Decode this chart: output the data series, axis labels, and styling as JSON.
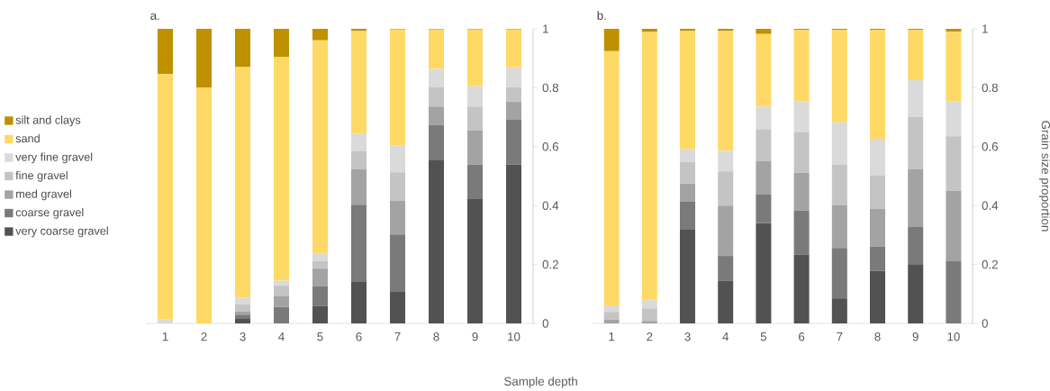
{
  "chart_data": [
    {
      "type": "bar",
      "stacked": true,
      "title": "a.",
      "xlabel": "Sample depth",
      "legend": "left",
      "categories": [
        "1",
        "2",
        "3",
        "4",
        "5",
        "6",
        "7",
        "8",
        "9",
        "10"
      ],
      "ylim": [
        0,
        1
      ],
      "yticks": [
        0,
        {
          "value": 0.2,
          "label": "0.2"
        },
        {
          "value": 0.4,
          "label": "0.4"
        },
        {
          "value": 0.6,
          "label": "0.6"
        },
        {
          "value": 0.8,
          "label": "0.8"
        },
        1
      ],
      "series": [
        {
          "name": "very coarse gravel",
          "color": "#525252",
          "values": [
            0,
            0,
            0.015,
            0,
            0.059,
            0.141,
            0.107,
            0.556,
            0.422,
            0.539
          ]
        },
        {
          "name": "coarse gravel",
          "color": "#7a7a7a",
          "values": [
            0,
            0,
            0.015,
            0.056,
            0.068,
            0.262,
            0.195,
            0.117,
            0.118,
            0.152
          ]
        },
        {
          "name": "med gravel",
          "color": "#a3a3a3",
          "values": [
            0,
            0,
            0.01,
            0.037,
            0.059,
            0.12,
            0.114,
            0.063,
            0.116,
            0.061
          ]
        },
        {
          "name": "fine gravel",
          "color": "#c4c4c4",
          "values": [
            0,
            0,
            0.024,
            0.035,
            0.026,
            0.063,
            0.097,
            0.066,
            0.08,
            0.05
          ]
        },
        {
          "name": "very fine gravel",
          "color": "#dadada",
          "values": [
            0.013,
            0,
            0.023,
            0.017,
            0.026,
            0.057,
            0.091,
            0.062,
            0.069,
            0.067
          ]
        },
        {
          "name": "sand",
          "color": "#ffd966",
          "values": [
            0.833,
            0.8,
            0.783,
            0.76,
            0.723,
            0.349,
            0.394,
            0.134,
            0.193,
            0.129
          ]
        },
        {
          "name": "silt and clays",
          "color": "#bf9000",
          "values": [
            0.154,
            0.2,
            0.13,
            0.095,
            0.039,
            0.008,
            0.002,
            0.002,
            0.002,
            0.002
          ]
        }
      ]
    },
    {
      "type": "bar",
      "stacked": true,
      "title": "b.",
      "ylabel": "Grain size proportion",
      "categories": [
        "1",
        "2",
        "3",
        "4",
        "5",
        "6",
        "7",
        "8",
        "9",
        "10"
      ],
      "ylim": [
        0,
        1
      ],
      "yticks": [
        0,
        {
          "value": 0.2,
          "label": "0.2"
        },
        {
          "value": 0.4,
          "label": "0.4"
        },
        {
          "value": 0.6,
          "label": "0.6"
        },
        {
          "value": 0.8,
          "label": "0.8"
        },
        1
      ],
      "series": [
        {
          "color": "#525252",
          "values": [
            0,
            0,
            0.318,
            0.144,
            0.34,
            0.233,
            0.085,
            0.179,
            0.201,
            0
          ]
        },
        {
          "color": "#7a7a7a",
          "values": [
            0,
            0,
            0.095,
            0.085,
            0.099,
            0.15,
            0.171,
            0.082,
            0.126,
            0.211
          ]
        },
        {
          "color": "#a3a3a3",
          "values": [
            0.013,
            0.008,
            0.062,
            0.171,
            0.112,
            0.128,
            0.146,
            0.128,
            0.196,
            0.239
          ]
        },
        {
          "color": "#c4c4c4",
          "values": [
            0.026,
            0.043,
            0.073,
            0.116,
            0.108,
            0.139,
            0.137,
            0.114,
            0.178,
            0.185
          ]
        },
        {
          "color": "#dadada",
          "values": [
            0.022,
            0.031,
            0.043,
            0.07,
            0.077,
            0.104,
            0.144,
            0.124,
            0.125,
            0.119
          ]
        },
        {
          "color": "#ffd966",
          "values": [
            0.863,
            0.907,
            0.401,
            0.406,
            0.246,
            0.243,
            0.314,
            0.37,
            0.171,
            0.236
          ]
        },
        {
          "color": "#bf9000",
          "values": [
            0.076,
            0.011,
            0.008,
            0.008,
            0.018,
            0.003,
            0.003,
            0.003,
            0.003,
            0.01
          ]
        }
      ]
    }
  ]
}
